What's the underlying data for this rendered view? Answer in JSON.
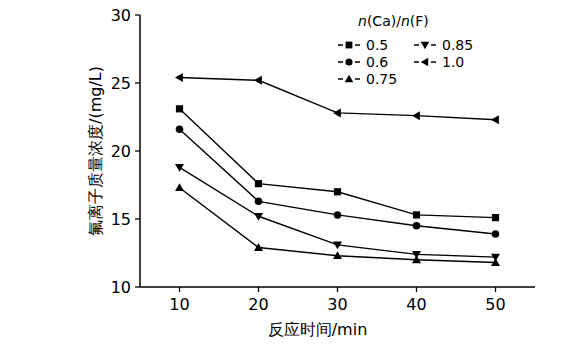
{
  "chart_data": {
    "type": "line",
    "x_label": "反应时间/min",
    "y_label": "氟离子质量浓度/(mg/L)",
    "legend_title": "n(Ca)/n(F)",
    "x": [
      10,
      20,
      30,
      40,
      50
    ],
    "xlim": [
      5,
      55
    ],
    "xticks": [
      10,
      20,
      30,
      40,
      50
    ],
    "ylim": [
      10,
      30
    ],
    "yticks": [
      10,
      15,
      20,
      25,
      30
    ],
    "legend": "upper right",
    "series": [
      {
        "name": "0.5",
        "color": "#000000",
        "marker": "square",
        "values": [
          23.1,
          17.6,
          17.0,
          15.3,
          15.1
        ]
      },
      {
        "name": "0.6",
        "color": "#000000",
        "marker": "circle",
        "values": [
          21.6,
          16.3,
          15.3,
          14.5,
          13.9
        ]
      },
      {
        "name": "0.75",
        "color": "#000000",
        "marker": "triangle-up",
        "values": [
          17.3,
          12.9,
          12.3,
          12.0,
          11.8
        ]
      },
      {
        "name": "0.85",
        "color": "#000000",
        "marker": "triangle-down",
        "values": [
          18.8,
          15.2,
          13.1,
          12.4,
          12.2
        ]
      },
      {
        "name": "1.0",
        "color": "#000000",
        "marker": "triangle-left",
        "values": [
          25.4,
          25.2,
          22.8,
          22.6,
          22.3
        ]
      }
    ]
  }
}
